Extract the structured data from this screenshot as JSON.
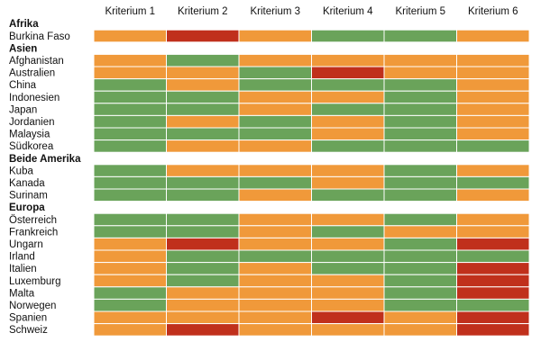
{
  "chart_data": {
    "type": "heatmap",
    "columns": [
      "Kriterium 1",
      "Kriterium 2",
      "Kriterium 3",
      "Kriterium 4",
      "Kriterium 5",
      "Kriterium 6"
    ],
    "colors": {
      "green": "#6aa35a",
      "orange": "#f0993a",
      "red": "#c0301c"
    },
    "groups": [
      {
        "name": "Afrika",
        "rows": [
          {
            "label": "Burkina Faso",
            "values": [
              "orange",
              "red",
              "orange",
              "green",
              "green",
              "orange"
            ]
          }
        ]
      },
      {
        "name": "Asien",
        "rows": [
          {
            "label": "Afghanistan",
            "values": [
              "orange",
              "green",
              "orange",
              "orange",
              "orange",
              "orange"
            ]
          },
          {
            "label": "Australien",
            "values": [
              "orange",
              "orange",
              "green",
              "red",
              "orange",
              "orange"
            ]
          },
          {
            "label": "China",
            "values": [
              "green",
              "orange",
              "green",
              "green",
              "green",
              "orange"
            ]
          },
          {
            "label": "Indonesien",
            "values": [
              "green",
              "green",
              "orange",
              "orange",
              "green",
              "orange"
            ]
          },
          {
            "label": "Japan",
            "values": [
              "green",
              "green",
              "orange",
              "green",
              "green",
              "orange"
            ]
          },
          {
            "label": "Jordanien",
            "values": [
              "green",
              "orange",
              "green",
              "orange",
              "green",
              "orange"
            ]
          },
          {
            "label": "Malaysia",
            "values": [
              "green",
              "green",
              "green",
              "orange",
              "green",
              "orange"
            ]
          },
          {
            "label": "Südkorea",
            "values": [
              "green",
              "orange",
              "orange",
              "green",
              "green",
              "green"
            ]
          }
        ]
      },
      {
        "name": "Beide Amerika",
        "rows": [
          {
            "label": "Kuba",
            "values": [
              "green",
              "orange",
              "orange",
              "orange",
              "green",
              "orange"
            ]
          },
          {
            "label": "Kanada",
            "values": [
              "green",
              "green",
              "green",
              "orange",
              "green",
              "green"
            ]
          },
          {
            "label": "Surinam",
            "values": [
              "green",
              "green",
              "orange",
              "green",
              "green",
              "orange"
            ]
          }
        ]
      },
      {
        "name": "Europa",
        "rows": [
          {
            "label": "Österreich",
            "values": [
              "green",
              "green",
              "orange",
              "orange",
              "green",
              "orange"
            ]
          },
          {
            "label": "Frankreich",
            "values": [
              "green",
              "green",
              "orange",
              "green",
              "orange",
              "orange"
            ]
          },
          {
            "label": "Ungarn",
            "values": [
              "orange",
              "red",
              "orange",
              "orange",
              "green",
              "red"
            ]
          },
          {
            "label": "Irland",
            "values": [
              "orange",
              "green",
              "green",
              "green",
              "green",
              "green"
            ]
          },
          {
            "label": "Italien",
            "values": [
              "orange",
              "green",
              "orange",
              "green",
              "green",
              "red"
            ]
          },
          {
            "label": "Luxemburg",
            "values": [
              "orange",
              "green",
              "orange",
              "orange",
              "green",
              "red"
            ]
          },
          {
            "label": "Malta",
            "values": [
              "green",
              "orange",
              "orange",
              "orange",
              "green",
              "red"
            ]
          },
          {
            "label": "Norwegen",
            "values": [
              "green",
              "orange",
              "orange",
              "orange",
              "green",
              "green"
            ]
          },
          {
            "label": "Spanien",
            "values": [
              "orange",
              "orange",
              "orange",
              "red",
              "orange",
              "red"
            ]
          },
          {
            "label": "Schweiz",
            "values": [
              "orange",
              "red",
              "orange",
              "orange",
              "orange",
              "red"
            ]
          }
        ]
      }
    ]
  }
}
